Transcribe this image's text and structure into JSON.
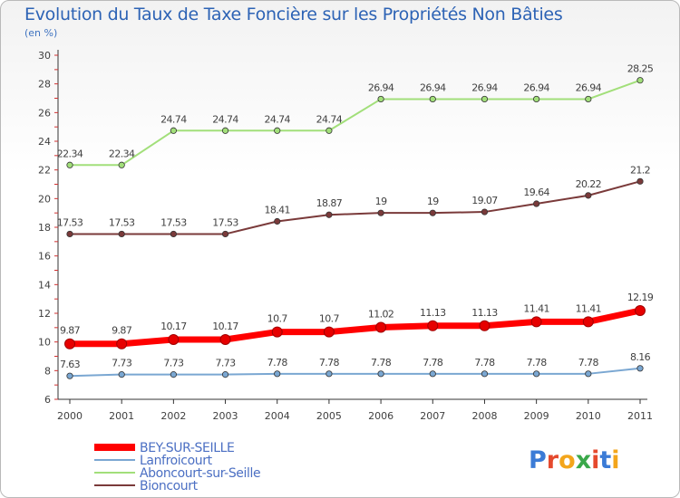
{
  "chart_data": {
    "type": "line",
    "title": "Evolution du Taux de Taxe Foncière sur les Propriétés Non Bâties",
    "unit_label": "(en %)",
    "x": [
      "2000",
      "2001",
      "2002",
      "2003",
      "2004",
      "2005",
      "2006",
      "2007",
      "2008",
      "2009",
      "2010",
      "2011"
    ],
    "ylim": [
      6,
      30
    ],
    "yticks": [
      6,
      8,
      10,
      12,
      14,
      16,
      18,
      20,
      22,
      24,
      26,
      28,
      30
    ],
    "series": [
      {
        "name": "BEY-SUR-SEILLE",
        "color": "#ff0000",
        "highlight": true,
        "values": [
          9.87,
          9.87,
          10.17,
          10.17,
          10.7,
          10.7,
          11.02,
          11.13,
          11.13,
          11.41,
          11.41,
          12.19
        ],
        "labels": [
          "9.87",
          "9.87",
          "10.17",
          "10.17",
          "10.7",
          "10.7",
          "11.02",
          "11.13",
          "11.13",
          "11.41",
          "11.41",
          "12.19"
        ]
      },
      {
        "name": "Lanfroicourt",
        "color": "#7aa7d2",
        "values": [
          7.63,
          7.73,
          7.73,
          7.73,
          7.78,
          7.78,
          7.78,
          7.78,
          7.78,
          7.78,
          7.78,
          8.16
        ],
        "labels": [
          "7.63",
          "7.73",
          "7.73",
          "7.73",
          "7.78",
          "7.78",
          "7.78",
          "7.78",
          "7.78",
          "7.78",
          "7.78",
          "8.16"
        ]
      },
      {
        "name": "Aboncourt-sur-Seille",
        "color": "#a2df7a",
        "values": [
          22.34,
          22.34,
          24.74,
          24.74,
          24.74,
          24.74,
          26.94,
          26.94,
          26.94,
          26.94,
          26.94,
          28.25
        ],
        "labels": [
          "22.34",
          "22.34",
          "24.74",
          "24.74",
          "24.74",
          "24.74",
          "26.94",
          "26.94",
          "26.94",
          "26.94",
          "26.94",
          "28.25"
        ]
      },
      {
        "name": "Bioncourt",
        "color": "#7a3a3a",
        "values": [
          17.53,
          17.53,
          17.53,
          17.53,
          18.41,
          18.87,
          19,
          19,
          19.07,
          19.64,
          20.22,
          21.2
        ],
        "labels": [
          "17.53",
          "17.53",
          "17.53",
          "17.53",
          "18.41",
          "18.87",
          "19",
          "19",
          "19.07",
          "19.64",
          "20.22",
          "21.2"
        ]
      }
    ],
    "grid": false,
    "legend_position": "bottom-left"
  },
  "logo": {
    "text": "Proxiti",
    "letters": [
      "P",
      "r",
      "o",
      "x",
      "i",
      "t",
      "i"
    ],
    "colors": [
      "#3b7bd6",
      "#e5492d",
      "#f3a51b",
      "#3aa84a",
      "#e5492d",
      "#3b7bd6",
      "#f3a51b"
    ]
  }
}
